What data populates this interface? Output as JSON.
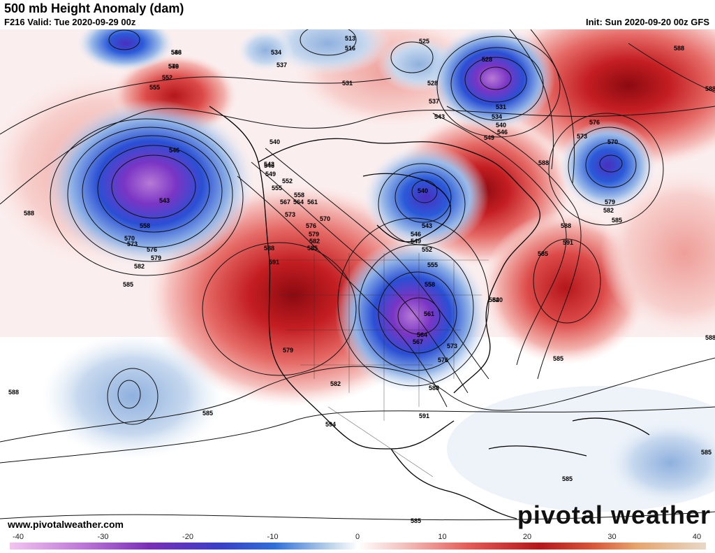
{
  "header": {
    "title": "500 mb Height Anomaly (dam)",
    "valid": "F216 Valid: Tue 2020-09-29 00z",
    "init": "Init: Sun 2020-09-20 00z GFS"
  },
  "footer": {
    "website": "www.pivotalweather.com",
    "brand": "pivotal weather"
  },
  "colorbar": {
    "ticks": [
      "-40",
      "-30",
      "-20",
      "-10",
      "0",
      "10",
      "20",
      "30",
      "40"
    ],
    "range": [
      -40,
      40
    ],
    "colors": {
      "strong_negative": "#b87ad6",
      "negative_purple": "#6a2fb8",
      "negative_blue": "#1f4fd0",
      "weak_negative": "#bcd3ea",
      "neutral": "#ffffff",
      "weak_positive": "#f4c7c4",
      "positive_red": "#d33030",
      "strong_positive": "#8b0a10",
      "extreme_positive": "#e8c9a0"
    }
  },
  "contour_labels": [
    "546",
    "549",
    "552",
    "555",
    "534",
    "537",
    "531",
    "513",
    "516",
    "525",
    "528",
    "528",
    "531",
    "534",
    "537",
    "540",
    "543",
    "546",
    "549",
    "588",
    "588",
    "576",
    "573",
    "570",
    "579",
    "582",
    "585",
    "588",
    "591",
    "546",
    "543",
    "558",
    "573",
    "570",
    "576",
    "579",
    "582",
    "585",
    "588",
    "540",
    "543",
    "546",
    "549",
    "552",
    "555",
    "558",
    "561",
    "567",
    "564",
    "573",
    "570",
    "576",
    "579",
    "582",
    "585",
    "588",
    "591",
    "540",
    "543",
    "546",
    "549",
    "552",
    "555",
    "558",
    "561",
    "564",
    "567",
    "573",
    "576",
    "579",
    "582",
    "594",
    "591",
    "588",
    "588",
    "585",
    "585",
    "585",
    "585",
    "585",
    "588",
    "540",
    "582",
    "585",
    "588",
    "588",
    "576"
  ]
}
